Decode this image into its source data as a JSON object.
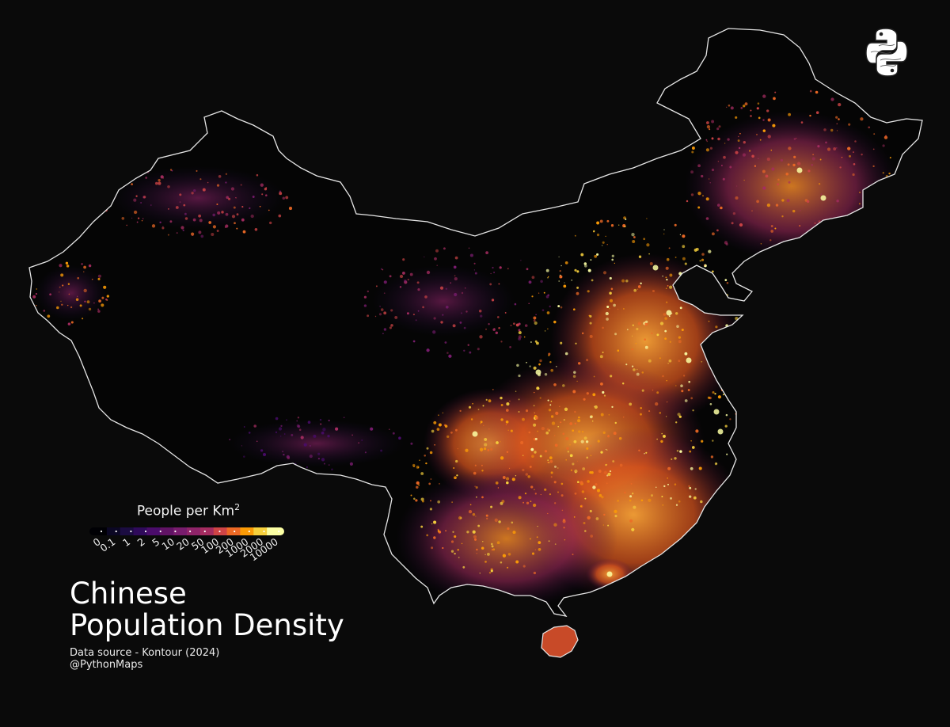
{
  "map": {
    "region": "China",
    "background_color": "#0a0a0a",
    "border_color": "#e6e6e6",
    "density_color_scale": [
      "#000004",
      "#1b0c41",
      "#4a0c6b",
      "#781c6d",
      "#a52c60",
      "#cf4446",
      "#ed6925",
      "#fb9b06",
      "#f7d13d",
      "#fcffa4"
    ]
  },
  "legend": {
    "title": "People per Km",
    "title_superscript": "2",
    "ticks": [
      "0",
      "0.1",
      "1",
      "2",
      "5",
      "10",
      "20",
      "50",
      "100",
      "200",
      "1000",
      "2000",
      "10000"
    ],
    "colors": [
      "#000004",
      "#0b0724",
      "#1b0c41",
      "#2f0a5b",
      "#4a0c6b",
      "#611365",
      "#781c6d",
      "#8f2469",
      "#a52c60",
      "#cf4446",
      "#ed6925",
      "#fb9b06",
      "#f7d13d",
      "#fcffa4"
    ]
  },
  "title": {
    "line1": "Chinese",
    "line2": "Population Density"
  },
  "footer": {
    "source": "Data source - Kontour (2024)",
    "handle": "@PythonMaps"
  },
  "logo": {
    "icon": "python-logo-icon"
  }
}
